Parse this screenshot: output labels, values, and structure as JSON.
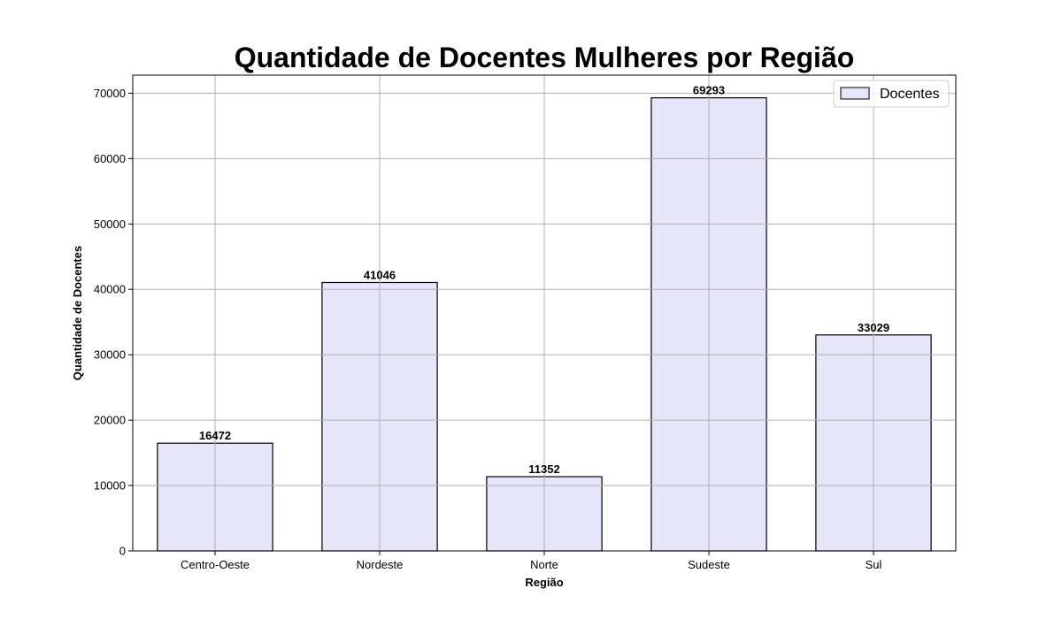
{
  "chart_data": {
    "type": "bar",
    "title": "Quantidade de Docentes Mulheres por Região",
    "xlabel": "Região",
    "ylabel": "Quantidade de Docentes",
    "categories": [
      "Centro-Oeste",
      "Nordeste",
      "Norte",
      "Sudeste",
      "Sul"
    ],
    "series": [
      {
        "name": "Docentes",
        "values": [
          16472,
          41046,
          11352,
          69293,
          33029
        ]
      }
    ],
    "data_labels": [
      "16472",
      "41046",
      "11352",
      "69293",
      "33029"
    ],
    "ylim": [
      0,
      72757
    ],
    "yticks": [
      0,
      10000,
      20000,
      30000,
      40000,
      50000,
      60000,
      70000
    ],
    "ytick_labels": [
      "0",
      "10000",
      "20000",
      "30000",
      "40000",
      "50000",
      "60000",
      "70000"
    ],
    "grid": true,
    "legend_position": "top-right",
    "colors": {
      "bar_fill": "#e6e6fa",
      "bar_edge": "#000000",
      "grid": "#b0b0b0",
      "axis": "#000000"
    }
  }
}
